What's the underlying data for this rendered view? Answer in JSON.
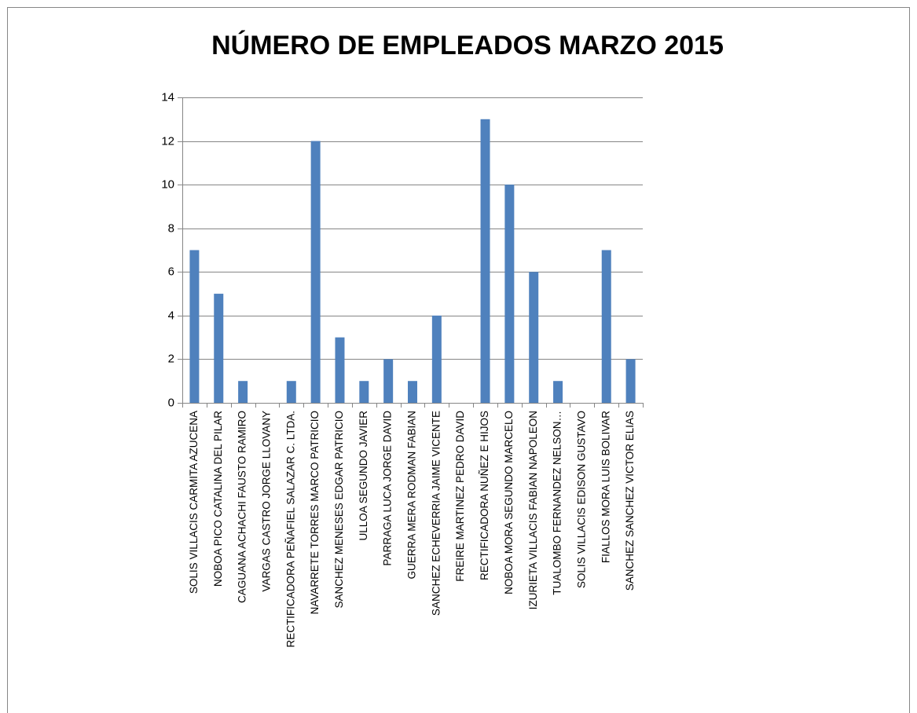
{
  "chart_data": {
    "type": "bar",
    "title": "NÚMERO DE EMPLEADOS MARZO 2015",
    "categories": [
      "SOLIS VILLACIS CARMITA AZUCENA",
      "NOBOA PICO CATALINA DEL PILAR",
      "CAGUANA ACHACHI FAUSTO RAMIRO",
      "VARGAS CASTRO JORGE LLOVANY",
      "RECTIFICADORA PEÑAFIEL SALAZAR C. LTDA.",
      "NAVARRETE TORRES MARCO PATRICIO",
      "SANCHEZ MENESES EDGAR PATRICIO",
      "ULLOA SEGUNDO JAVIER",
      "PARRAGA LUCA JORGE DAVID",
      "GUERRA MERA RODMAN FABIAN",
      "SANCHEZ ECHEVERRIA JAIME VICENTE",
      "FREIRE MARTINEZ PEDRO DAVID",
      "RECTIFICADORA NUÑEZ E HIJOS",
      "NOBOA MORA SEGUNDO MARCELO",
      "IZURIETA VILLACIS FABIAN NAPOLEON",
      "TUALOMBO FERNANDEZ NELSON…",
      "SOLIS VILLACIS EDISON GUSTAVO",
      "FIALLOS MORA LUIS BOLIVAR",
      "SANCHEZ SANCHEZ VICTOR ELIAS"
    ],
    "values": [
      7,
      5,
      1,
      0,
      1,
      12,
      3,
      1,
      2,
      1,
      4,
      0,
      13,
      10,
      6,
      1,
      0,
      7,
      2
    ],
    "color": "#4f81bd",
    "ylim": [
      0,
      14
    ],
    "yticks": [
      0,
      2,
      4,
      6,
      8,
      10,
      12,
      14
    ],
    "grid": true
  }
}
